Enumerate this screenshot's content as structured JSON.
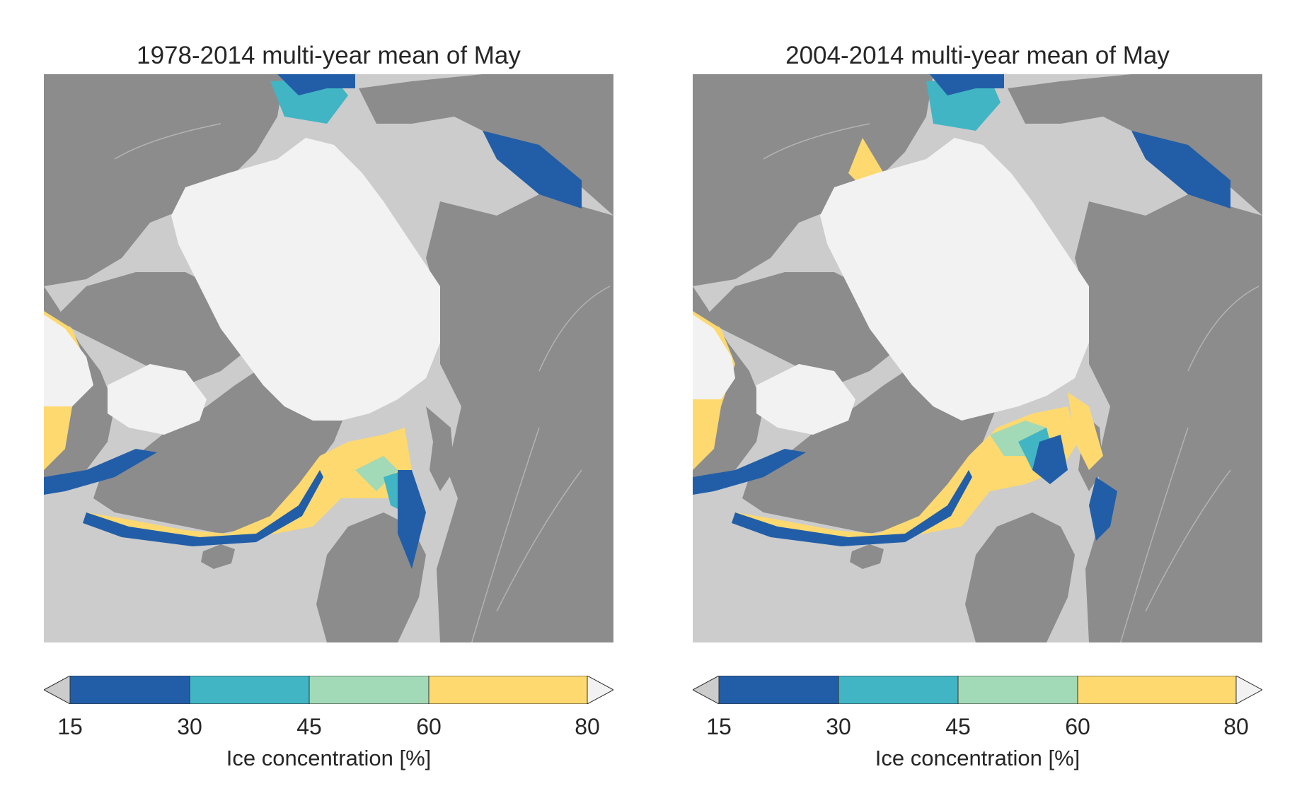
{
  "colors": {
    "ocean": "#cccccc",
    "land": "#8c8c8c",
    "ice_80_plus": "#f2f2f2",
    "band_60_80": "#fdd96f",
    "band_45_60": "#a2d9b6",
    "band_30_45": "#41b5c4",
    "band_15_30": "#225ea8",
    "under_15": "#cccccc",
    "rivers": "#b3b3b3"
  },
  "panels": [
    {
      "title": "1978-2014 multi-year mean of May",
      "colorbar": {
        "ticks": [
          "15",
          "30",
          "45",
          "60",
          "80"
        ],
        "label": "Ice concentration [%]",
        "bins": [
          {
            "from": 15,
            "to": 30,
            "color": "#225ea8"
          },
          {
            "from": 30,
            "to": 45,
            "color": "#41b5c4"
          },
          {
            "from": 45,
            "to": 60,
            "color": "#a2d9b6"
          },
          {
            "from": 60,
            "to": 80,
            "color": "#fdd96f"
          }
        ],
        "extend_low_color": "#cccccc",
        "extend_high_color": "#f2f2f2"
      }
    },
    {
      "title": "2004-2014 multi-year mean of May",
      "colorbar": {
        "ticks": [
          "15",
          "30",
          "45",
          "60",
          "80"
        ],
        "label": "Ice concentration [%]",
        "bins": [
          {
            "from": 15,
            "to": 30,
            "color": "#225ea8"
          },
          {
            "from": 30,
            "to": 45,
            "color": "#41b5c4"
          },
          {
            "from": 45,
            "to": 60,
            "color": "#a2d9b6"
          },
          {
            "from": 60,
            "to": 80,
            "color": "#fdd96f"
          }
        ],
        "extend_low_color": "#cccccc",
        "extend_high_color": "#f2f2f2"
      }
    }
  ]
}
